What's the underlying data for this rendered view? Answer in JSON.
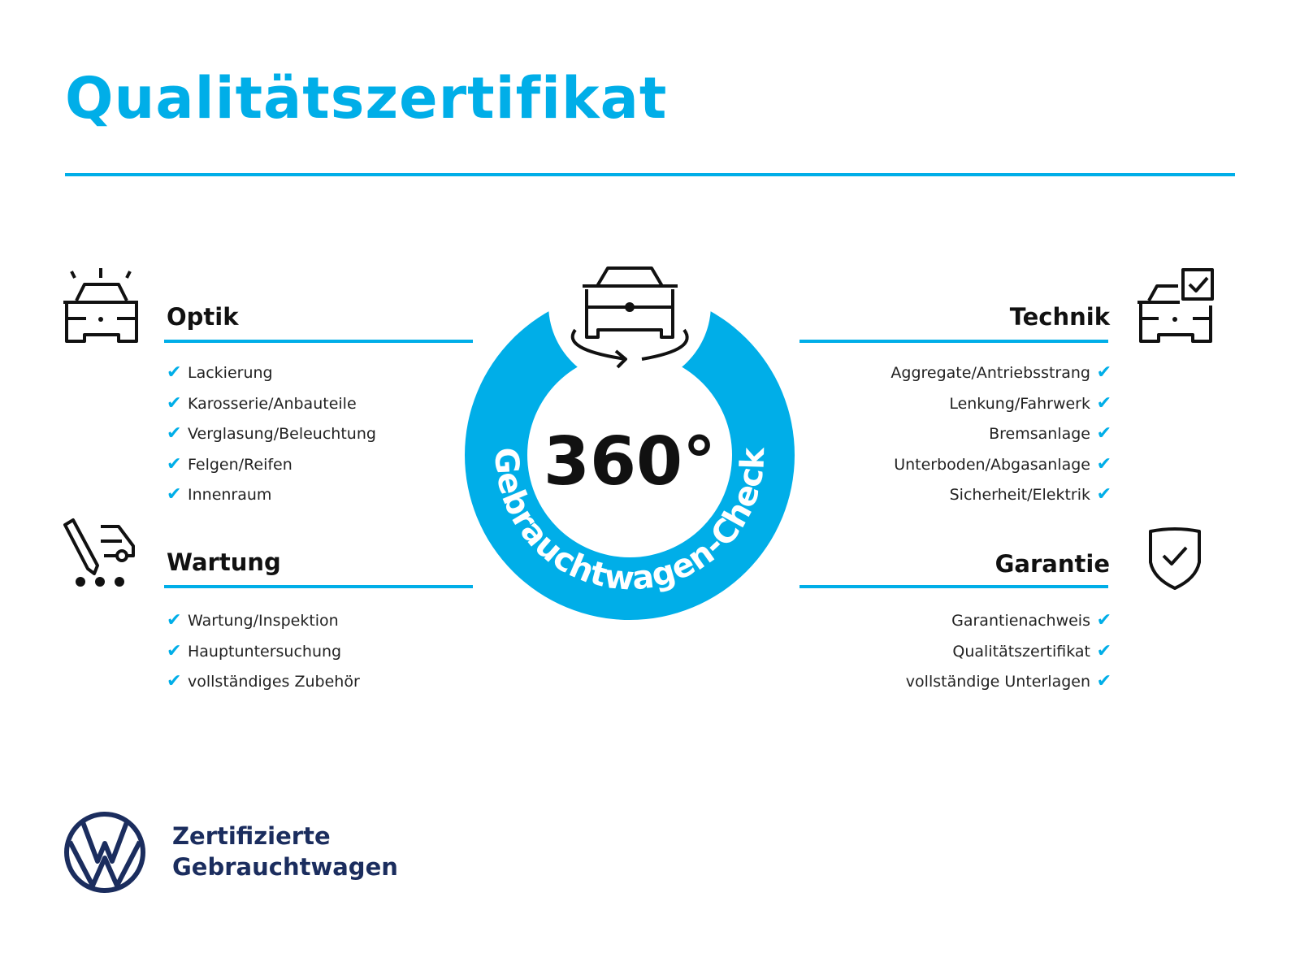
{
  "title": "Qualitätszertifikat",
  "accent_color": "#00aee8",
  "brand_color": "#1b2d5e",
  "badge": {
    "value": "360°",
    "arc_text": "Gebrauchtwagen-Check",
    "icon": "rotating-car-icon"
  },
  "sections": {
    "optik": {
      "title": "Optik",
      "icon": "car-lights-icon",
      "items": [
        "Lackierung",
        "Karosserie/Anbauteile",
        "Verglasung/Beleuchtung",
        "Felgen/Reifen",
        "Innenraum"
      ]
    },
    "wartung": {
      "title": "Wartung",
      "icon": "car-service-icon",
      "items": [
        "Wartung/Inspektion",
        "Hauptuntersuchung",
        "vollständiges Zubehör"
      ]
    },
    "technik": {
      "title": "Technik",
      "icon": "car-checkbox-icon",
      "items": [
        "Aggregate/Antriebsstrang",
        "Lenkung/Fahrwerk",
        "Bremsanlage",
        "Unterboden/Abgasanlage",
        "Sicherheit/Elektrik"
      ]
    },
    "garantie": {
      "title": "Garantie",
      "icon": "shield-check-icon",
      "items": [
        "Garantienachweis",
        "Qualitätszertifikat",
        "vollständige Unterlagen"
      ]
    }
  },
  "check_glyph": "✔",
  "footer": {
    "line1": "Zertifizierte",
    "line2": "Gebrauchtwagen",
    "logo": "vw-logo"
  }
}
